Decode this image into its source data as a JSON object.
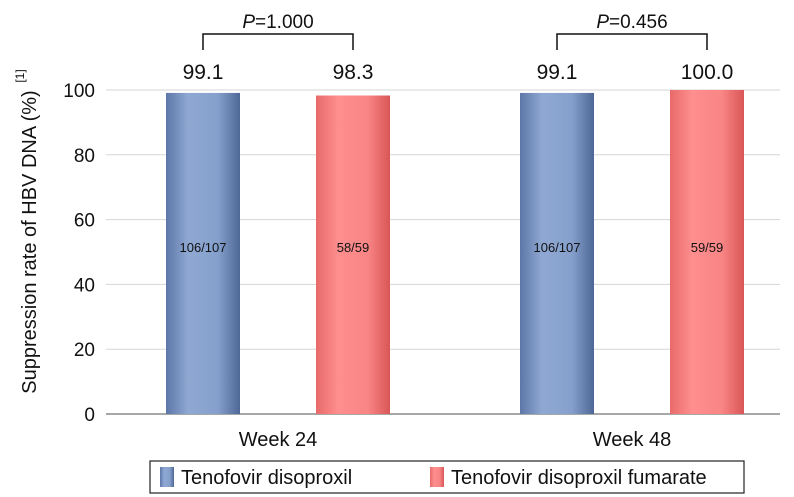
{
  "chart_data": {
    "type": "bar",
    "categories": [
      "Week 24",
      "Week 48"
    ],
    "series": [
      {
        "name": "Tenofovir disoproxil",
        "values": [
          99.1,
          99.1
        ],
        "value_labels": [
          "99.1",
          "99.1"
        ],
        "inbar_labels": [
          "106/107",
          "106/107"
        ],
        "color": "#7f9bc9"
      },
      {
        "name": "Tenofovir disoproxil fumarate",
        "values": [
          98.3,
          100.0
        ],
        "value_labels": [
          "98.3",
          "100.0"
        ],
        "inbar_labels": [
          "58/59",
          "59/59"
        ],
        "color": "#f07e7e"
      }
    ],
    "ylabel": "Suppression rate of HBV DNA (%)",
    "ylabel_superscript": "[1]",
    "ylim": [
      0,
      100
    ],
    "yticks": [
      0,
      20,
      40,
      60,
      80,
      100
    ],
    "grid": true,
    "legend_position": "bottom",
    "comparisons": [
      {
        "category": "Week 24",
        "p_prefix": "P",
        "p_value": "=1.000"
      },
      {
        "category": "Week 48",
        "p_prefix": "P",
        "p_value": "=0.456"
      }
    ]
  }
}
